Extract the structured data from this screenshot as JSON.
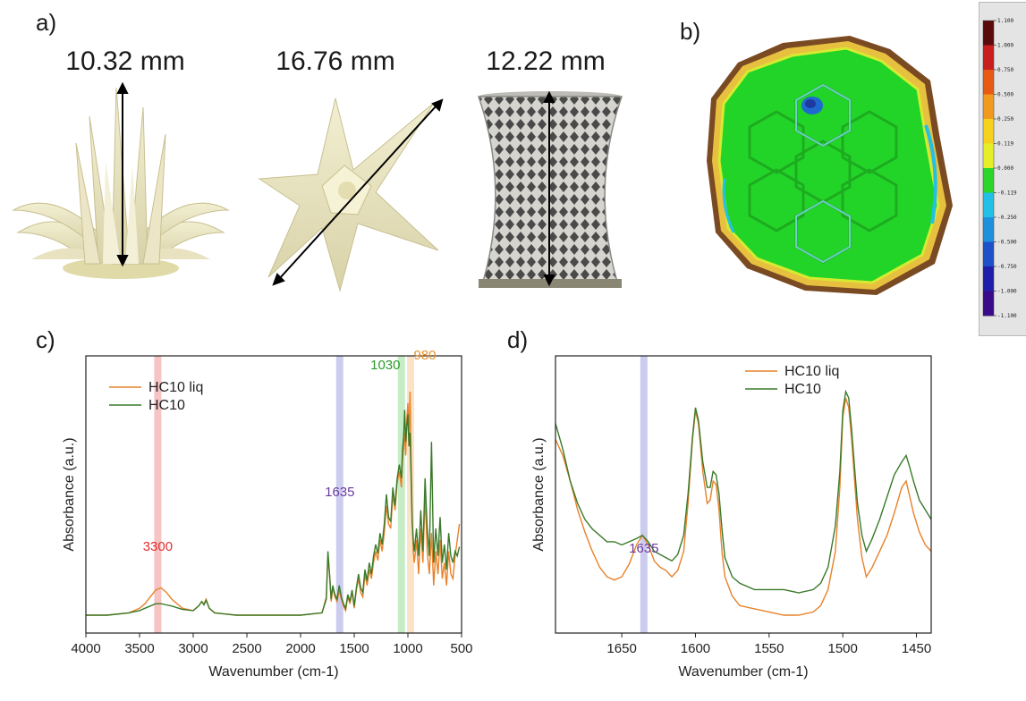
{
  "panel_labels": {
    "a": "a)",
    "b": "b)",
    "c": "c)",
    "d": "d)"
  },
  "dimensions": [
    "10.32 mm",
    "16.76 mm",
    "12.22 mm"
  ],
  "scale_bar": {
    "ticks": [
      "1.100",
      "1.000",
      "0.750",
      "0.500",
      "0.250",
      "0.119",
      "0.000",
      "-0.119",
      "-0.250",
      "-0.500",
      "-0.750",
      "-1.000",
      "-1.100"
    ],
    "colors": [
      "#5a0a0a",
      "#c81e1e",
      "#e85a14",
      "#f29a1e",
      "#f5d21e",
      "#e6ee28",
      "#2ad62a",
      "#22c0e6",
      "#1e90dc",
      "#1e50c8",
      "#1e1eaa",
      "#3a0a8a"
    ]
  },
  "chart_data": [
    {
      "type": "line",
      "panel": "c)",
      "xlabel": "Wavenumber (cm-1)",
      "ylabel": "Absorbance (a.u.)",
      "xlim": [
        4000,
        500
      ],
      "xticks": [
        "4000",
        "3500",
        "3000",
        "2500",
        "2000",
        "1500",
        "1000",
        "500"
      ],
      "legend_position": "top-left",
      "bands": [
        {
          "x": 3330,
          "label": "3300",
          "color": "#f08a8a"
        },
        {
          "x": 1635,
          "label": "1635",
          "color": "#9a9ae0"
        },
        {
          "x": 1060,
          "label": "1030",
          "color": "#8fdc8f"
        },
        {
          "x": 975,
          "label": "980",
          "color": "#f7c890"
        }
      ],
      "annotation_colors": {
        "3300": "#e03030",
        "1635": "#6a3aa0",
        "1030": "#2a9a2a",
        "980": "#e8922a"
      },
      "series": [
        {
          "name": "HC10 liq",
          "color": "#e8822a",
          "x": [
            4000,
            3800,
            3600,
            3500,
            3450,
            3400,
            3350,
            3300,
            3250,
            3200,
            3100,
            3000,
            2950,
            2920,
            2900,
            2880,
            2850,
            2800,
            2600,
            2400,
            2200,
            2000,
            1800,
            1760,
            1745,
            1730,
            1715,
            1700,
            1680,
            1660,
            1640,
            1620,
            1600,
            1580,
            1560,
            1540,
            1520,
            1500,
            1480,
            1460,
            1440,
            1420,
            1400,
            1380,
            1360,
            1340,
            1320,
            1300,
            1280,
            1260,
            1240,
            1220,
            1200,
            1180,
            1160,
            1140,
            1120,
            1100,
            1080,
            1060,
            1050,
            1040,
            1030,
            1020,
            1010,
            1000,
            990,
            980,
            970,
            960,
            950,
            940,
            920,
            900,
            880,
            860,
            840,
            820,
            800,
            780,
            760,
            740,
            720,
            700,
            680,
            660,
            640,
            620,
            600,
            580,
            560,
            540,
            520
          ],
          "y": [
            0.02,
            0.02,
            0.03,
            0.05,
            0.07,
            0.1,
            0.13,
            0.14,
            0.12,
            0.09,
            0.05,
            0.04,
            0.06,
            0.08,
            0.07,
            0.09,
            0.05,
            0.03,
            0.02,
            0.02,
            0.02,
            0.02,
            0.03,
            0.1,
            0.28,
            0.2,
            0.08,
            0.14,
            0.1,
            0.08,
            0.13,
            0.09,
            0.06,
            0.04,
            0.1,
            0.07,
            0.12,
            0.05,
            0.13,
            0.18,
            0.12,
            0.1,
            0.2,
            0.15,
            0.22,
            0.18,
            0.25,
            0.3,
            0.26,
            0.35,
            0.3,
            0.38,
            0.5,
            0.42,
            0.4,
            0.55,
            0.48,
            0.6,
            0.65,
            0.58,
            0.7,
            0.75,
            0.82,
            0.72,
            0.88,
            0.95,
            0.8,
            1.0,
            0.7,
            0.45,
            0.3,
            0.25,
            0.35,
            0.2,
            0.4,
            0.25,
            0.55,
            0.3,
            0.2,
            0.38,
            0.15,
            0.3,
            0.2,
            0.35,
            0.18,
            0.25,
            0.15,
            0.3,
            0.2,
            0.18,
            0.28,
            0.35,
            0.42
          ]
        },
        {
          "name": "HC10",
          "color": "#3a7a2a",
          "x": [
            4000,
            3800,
            3600,
            3500,
            3450,
            3400,
            3350,
            3300,
            3250,
            3200,
            3100,
            3000,
            2950,
            2920,
            2900,
            2880,
            2850,
            2800,
            2600,
            2400,
            2200,
            2000,
            1800,
            1760,
            1745,
            1730,
            1715,
            1700,
            1680,
            1660,
            1640,
            1620,
            1600,
            1580,
            1560,
            1540,
            1520,
            1500,
            1480,
            1460,
            1440,
            1420,
            1400,
            1380,
            1360,
            1340,
            1320,
            1300,
            1280,
            1260,
            1240,
            1220,
            1200,
            1180,
            1160,
            1140,
            1120,
            1100,
            1080,
            1060,
            1050,
            1040,
            1030,
            1020,
            1010,
            1000,
            990,
            980,
            970,
            960,
            950,
            940,
            920,
            900,
            880,
            860,
            840,
            820,
            800,
            780,
            760,
            740,
            720,
            700,
            680,
            660,
            640,
            620,
            600,
            580,
            560,
            540,
            520
          ],
          "y": [
            0.02,
            0.02,
            0.03,
            0.04,
            0.05,
            0.06,
            0.07,
            0.07,
            0.065,
            0.06,
            0.045,
            0.04,
            0.06,
            0.08,
            0.065,
            0.085,
            0.05,
            0.03,
            0.02,
            0.02,
            0.02,
            0.02,
            0.03,
            0.09,
            0.3,
            0.2,
            0.09,
            0.15,
            0.11,
            0.09,
            0.15,
            0.1,
            0.07,
            0.05,
            0.11,
            0.08,
            0.13,
            0.06,
            0.14,
            0.2,
            0.14,
            0.12,
            0.22,
            0.17,
            0.25,
            0.2,
            0.28,
            0.33,
            0.29,
            0.38,
            0.33,
            0.42,
            0.55,
            0.45,
            0.43,
            0.58,
            0.5,
            0.62,
            0.68,
            0.62,
            0.75,
            0.8,
            0.92,
            0.78,
            0.85,
            0.9,
            0.76,
            0.82,
            0.62,
            0.42,
            0.35,
            0.3,
            0.4,
            0.28,
            0.48,
            0.3,
            0.62,
            0.4,
            0.28,
            0.78,
            0.25,
            0.4,
            0.28,
            0.45,
            0.25,
            0.33,
            0.22,
            0.38,
            0.28,
            0.25,
            0.3,
            0.28,
            0.32
          ]
        }
      ]
    },
    {
      "type": "line",
      "panel": "d)",
      "xlabel": "Wavenumber (cm-1)",
      "ylabel": "Absorbance (a.u.)",
      "xlim": [
        1695,
        1440
      ],
      "xticks": [
        "1650",
        "1600",
        "1550",
        "1500",
        "1450"
      ],
      "xtick_values": [
        1650,
        1600,
        1550,
        1500,
        1450
      ],
      "legend_position": "top-right",
      "bands": [
        {
          "x": 1635,
          "label": "1635",
          "color": "#9a9ae0"
        }
      ],
      "annotation_colors": {
        "1635": "#6a3aa0"
      },
      "series": [
        {
          "name": "HC10 liq",
          "color": "#e8822a",
          "x": [
            1695,
            1690,
            1685,
            1680,
            1675,
            1670,
            1665,
            1660,
            1655,
            1650,
            1645,
            1640,
            1636,
            1632,
            1628,
            1624,
            1620,
            1616,
            1612,
            1608,
            1605,
            1602,
            1600,
            1598,
            1595,
            1592,
            1590,
            1588,
            1586,
            1584,
            1582,
            1580,
            1575,
            1570,
            1560,
            1550,
            1540,
            1530,
            1520,
            1515,
            1510,
            1505,
            1502,
            1500,
            1498,
            1496,
            1494,
            1492,
            1490,
            1487,
            1484,
            1480,
            1475,
            1470,
            1465,
            1460,
            1457,
            1455,
            1452,
            1448,
            1444,
            1440
          ],
          "y": [
            0.55,
            0.5,
            0.42,
            0.33,
            0.26,
            0.2,
            0.15,
            0.12,
            0.11,
            0.12,
            0.16,
            0.22,
            0.25,
            0.22,
            0.17,
            0.15,
            0.14,
            0.12,
            0.14,
            0.2,
            0.35,
            0.55,
            0.64,
            0.6,
            0.45,
            0.35,
            0.36,
            0.42,
            0.41,
            0.33,
            0.2,
            0.12,
            0.06,
            0.03,
            0.02,
            0.01,
            0.0,
            0.0,
            0.01,
            0.03,
            0.08,
            0.2,
            0.4,
            0.62,
            0.68,
            0.65,
            0.55,
            0.42,
            0.3,
            0.18,
            0.12,
            0.15,
            0.2,
            0.25,
            0.32,
            0.4,
            0.42,
            0.38,
            0.32,
            0.26,
            0.22,
            0.2
          ]
        },
        {
          "name": "HC10",
          "color": "#3a7a2a",
          "x": [
            1695,
            1690,
            1685,
            1680,
            1675,
            1670,
            1665,
            1660,
            1655,
            1650,
            1645,
            1640,
            1636,
            1632,
            1628,
            1624,
            1620,
            1616,
            1612,
            1608,
            1605,
            1602,
            1600,
            1598,
            1595,
            1592,
            1590,
            1588,
            1586,
            1584,
            1582,
            1580,
            1575,
            1570,
            1560,
            1550,
            1540,
            1530,
            1520,
            1515,
            1510,
            1505,
            1502,
            1500,
            1498,
            1496,
            1494,
            1492,
            1490,
            1487,
            1484,
            1480,
            1475,
            1470,
            1465,
            1460,
            1457,
            1455,
            1452,
            1448,
            1444,
            1440
          ],
          "y": [
            0.6,
            0.52,
            0.42,
            0.35,
            0.3,
            0.27,
            0.25,
            0.23,
            0.23,
            0.22,
            0.23,
            0.24,
            0.25,
            0.23,
            0.2,
            0.19,
            0.18,
            0.17,
            0.19,
            0.25,
            0.38,
            0.56,
            0.65,
            0.61,
            0.48,
            0.4,
            0.4,
            0.45,
            0.44,
            0.38,
            0.27,
            0.18,
            0.12,
            0.1,
            0.08,
            0.08,
            0.08,
            0.07,
            0.08,
            0.1,
            0.15,
            0.28,
            0.45,
            0.64,
            0.7,
            0.68,
            0.58,
            0.46,
            0.35,
            0.25,
            0.2,
            0.24,
            0.3,
            0.37,
            0.44,
            0.48,
            0.5,
            0.47,
            0.42,
            0.36,
            0.33,
            0.3
          ]
        }
      ]
    }
  ]
}
